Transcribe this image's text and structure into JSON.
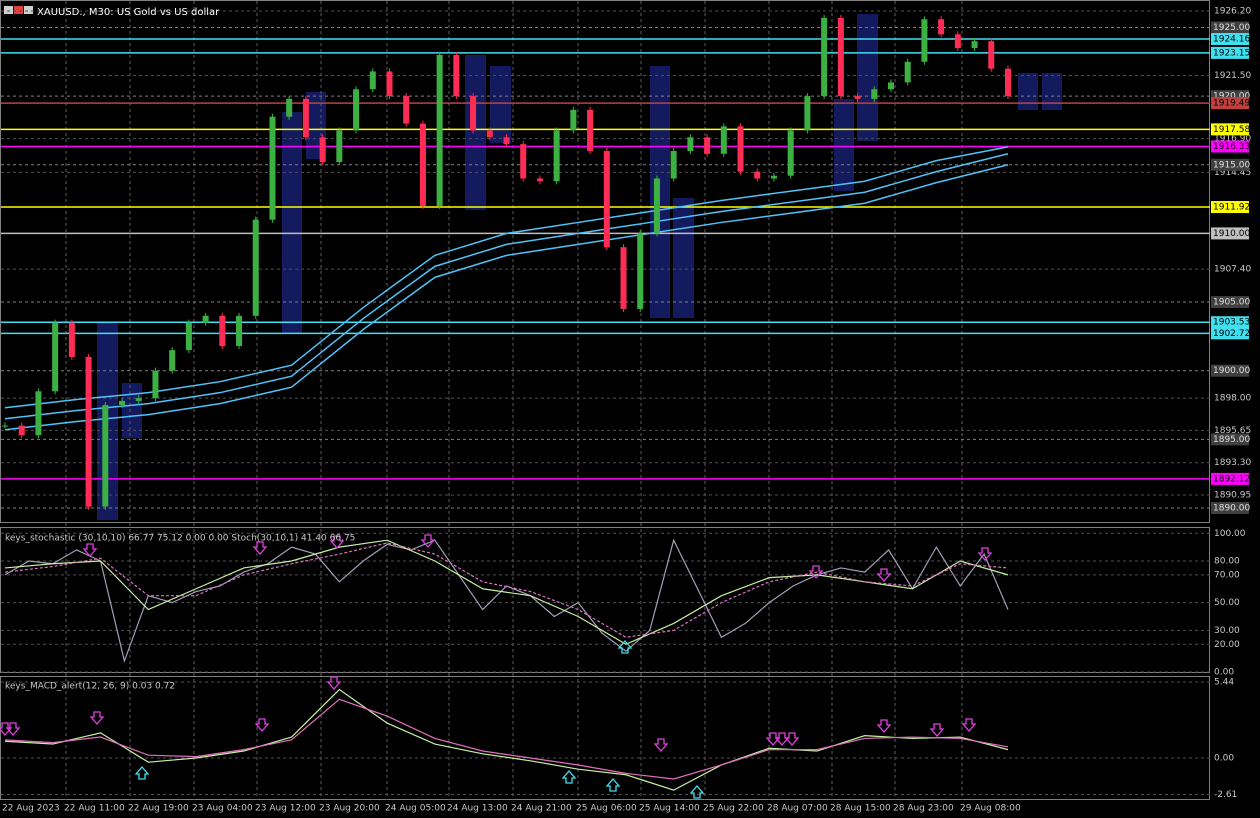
{
  "header": {
    "title": "XAUUSD., M30:  US Gold vs US dollar"
  },
  "price_panel": {
    "ylim": [
      1889.2,
      1927.0
    ],
    "yticks": [
      {
        "value": 1926.2,
        "label": "1926.20"
      },
      {
        "value": 1921.5,
        "label": "1921.50"
      },
      {
        "value": 1916.9,
        "label": "1916.90"
      },
      {
        "value": 1914.45,
        "label": "1914.45"
      },
      {
        "value": 1907.4,
        "label": "1907.40"
      },
      {
        "value": 1898,
        "label": "1898.00"
      },
      {
        "value": 1895.65,
        "label": "1895.65"
      },
      {
        "value": 1893.3,
        "label": "1893.30"
      },
      {
        "value": 1890.95,
        "label": "1890.95"
      }
    ],
    "levels": [
      {
        "value": 1925,
        "label": "1925.00",
        "color": "#808080"
      },
      {
        "value": 1924.16,
        "label": "1924.16",
        "color": "#40e0f0"
      },
      {
        "value": 1923.15,
        "label": "1923.15",
        "color": "#40e0f0"
      },
      {
        "value": 1920,
        "label": "1920.00",
        "color": "#808080"
      },
      {
        "value": 1919.49,
        "label": "1919.49",
        "color": "#c04040"
      },
      {
        "value": 1917.58,
        "label": "1917.58",
        "color": "#ffff00"
      },
      {
        "value": 1916.33,
        "label": "1916.33",
        "color": "#ff00ff"
      },
      {
        "value": 1915,
        "label": "1915.00",
        "color": "#808080"
      },
      {
        "value": 1911.92,
        "label": "1911.92",
        "color": "#ffff00"
      },
      {
        "value": 1910,
        "label": "1910.00",
        "color": "#c0c0c0"
      },
      {
        "value": 1905,
        "label": "1905.00",
        "color": "#808080"
      },
      {
        "value": 1903.53,
        "label": "1903.53",
        "color": "#40e0f0"
      },
      {
        "value": 1902.72,
        "label": "1902.72",
        "color": "#40e0f0"
      },
      {
        "value": 1900,
        "label": "1900.00",
        "color": "#808080"
      },
      {
        "value": 1895,
        "label": "1895.00",
        "color": "#808080"
      },
      {
        "value": 1892.12,
        "label": "1892.12",
        "color": "#ff00ff"
      },
      {
        "value": 1890,
        "label": "1890.00",
        "color": "#808080"
      }
    ],
    "closes": [
      1896,
      1895.3,
      1898.5,
      1903.5,
      1901,
      1890.1,
      1897.5,
      1897.8,
      1898,
      1900,
      1901.5,
      1903.5,
      1904,
      1901.8,
      1904,
      1911,
      1918.5,
      1919.8,
      1917,
      1915.2,
      1917.5,
      1920.5,
      1921.8,
      1920,
      1918,
      1912,
      1923,
      1920,
      1917.5,
      1917,
      1916.5,
      1914,
      1913.8,
      1917.5,
      1919,
      1916,
      1909,
      1904.5,
      1910,
      1914,
      1916,
      1917,
      1915.8,
      1917.8,
      1914.5,
      1914,
      1914.2,
      1917.5,
      1920,
      1925.7,
      1920,
      1919.8,
      1920.5,
      1921,
      1922.5,
      1925.6,
      1924.5,
      1923.5,
      1924,
      1922,
      1920
    ],
    "up_color": "#3cb043",
    "down_color": "#ff2d55",
    "moving_averages": {
      "color": "#4fc3f7",
      "series": [
        [
          1897.3,
          1897.9,
          1898.4,
          1899.2,
          1900.4,
          1904.6,
          1908.4,
          1910.0,
          1910.8,
          1911.6,
          1912.4,
          1913.1,
          1913.8,
          1915.3,
          1916.3
        ],
        [
          1896.5,
          1897.1,
          1897.6,
          1898.4,
          1899.6,
          1903.8,
          1907.6,
          1909.2,
          1910.0,
          1910.8,
          1911.6,
          1912.3,
          1913.0,
          1914.5,
          1915.8
        ],
        [
          1895.7,
          1896.3,
          1896.8,
          1897.6,
          1898.8,
          1903.0,
          1906.8,
          1908.4,
          1909.2,
          1910.0,
          1910.8,
          1911.5,
          1912.2,
          1913.7,
          1915.0
        ]
      ]
    }
  },
  "stochastic_panel": {
    "label": "keys_stochastic (30,10,10) 66.77 75.12 0.00 0.00 Stoch(30,10,1) 41.40 66.75",
    "ylim": [
      0,
      100
    ],
    "yticks": [
      {
        "value": 100,
        "label": "100.00"
      },
      {
        "value": 80,
        "label": "80.00"
      },
      {
        "value": 70,
        "label": "70.00"
      },
      {
        "value": 50,
        "label": "50.00"
      },
      {
        "value": 30,
        "label": "30.00"
      },
      {
        "value": 20,
        "label": "20.00"
      },
      {
        "value": 0,
        "label": "0.00"
      }
    ],
    "series": [
      {
        "color": "#a0a0b8",
        "values": [
          70,
          80,
          78,
          88,
          80,
          8,
          55,
          50,
          58,
          62,
          72,
          78,
          90,
          85,
          65,
          80,
          92,
          88,
          95,
          70,
          45,
          62,
          55,
          40,
          50,
          28,
          15,
          30,
          95,
          60,
          25,
          35,
          50,
          62,
          70,
          75,
          72,
          88,
          60,
          90,
          62,
          85,
          45
        ]
      },
      {
        "color": "#c8f0a0",
        "values": [
          75,
          78,
          80,
          45,
          60,
          75,
          80,
          90,
          95,
          80,
          60,
          55,
          40,
          20,
          35,
          55,
          68,
          70,
          65,
          60,
          80,
          70
        ]
      },
      {
        "color": "#e070c0",
        "values": [
          72,
          76,
          82,
          55,
          55,
          70,
          78,
          85,
          93,
          85,
          65,
          58,
          45,
          25,
          30,
          50,
          65,
          72,
          65,
          62,
          78,
          75
        ]
      }
    ]
  },
  "macd_panel": {
    "label": "keys_MACD_alert(12, 26, 9) 0.03 0.72",
    "ylim": [
      -2.61,
      5.44
    ],
    "yticks": [
      {
        "value": 5.44,
        "label": "5.44"
      },
      {
        "value": 0,
        "label": "0.00"
      },
      {
        "value": -2.61,
        "label": "-2.61"
      }
    ],
    "series": [
      {
        "color": "#c8f0a0",
        "values": [
          1.2,
          1.0,
          1.8,
          -0.3,
          0,
          0.5,
          1.5,
          4.9,
          2.5,
          1.0,
          0.3,
          -0.2,
          -0.8,
          -1.2,
          -2.3,
          -0.5,
          0.7,
          0.5,
          1.6,
          1.4,
          1.5,
          0.6
        ]
      },
      {
        "color": "#e070c0",
        "values": [
          1.3,
          1.1,
          1.5,
          0.2,
          0.1,
          0.6,
          1.3,
          4.2,
          3.0,
          1.4,
          0.5,
          0,
          -0.5,
          -1.1,
          -1.5,
          -0.5,
          0.6,
          0.6,
          1.4,
          1.5,
          1.4,
          0.8
        ]
      }
    ]
  },
  "time_axis": [
    "22 Aug 2023",
    "22 Aug 11:00",
    "22 Aug 19:00",
    "23 Aug 04:00",
    "23 Aug 12:00",
    "23 Aug 20:00",
    "24 Aug 05:00",
    "24 Aug 13:00",
    "24 Aug 21:00",
    "25 Aug 06:00",
    "25 Aug 14:00",
    "25 Aug 22:00",
    "28 Aug 07:00",
    "28 Aug 15:00",
    "28 Aug 23:00",
    "29 Aug 08:00"
  ]
}
